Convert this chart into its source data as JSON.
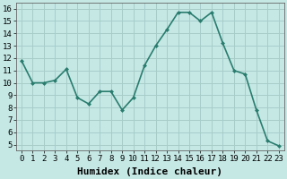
{
  "x": [
    0,
    1,
    2,
    3,
    4,
    5,
    6,
    7,
    8,
    9,
    10,
    11,
    12,
    13,
    14,
    15,
    16,
    17,
    18,
    19,
    20,
    21,
    22,
    23
  ],
  "y": [
    11.8,
    10.0,
    10.0,
    10.2,
    11.1,
    8.8,
    8.3,
    9.3,
    9.3,
    7.8,
    8.8,
    11.4,
    13.0,
    14.3,
    15.7,
    15.7,
    15.0,
    15.7,
    13.2,
    11.0,
    10.7,
    7.8,
    5.3,
    4.9
  ],
  "xlabel": "Humidex (Indice chaleur)",
  "line_color": "#2a7d6e",
  "marker": "D",
  "marker_size": 2,
  "bg_color": "#c5e8e5",
  "grid_color": "#a8cdc9",
  "ylim": [
    4.5,
    16.5
  ],
  "xlim": [
    -0.5,
    23.5
  ],
  "yticks": [
    5,
    6,
    7,
    8,
    9,
    10,
    11,
    12,
    13,
    14,
    15,
    16
  ],
  "xtick_labels": [
    "0",
    "1",
    "2",
    "3",
    "4",
    "5",
    "6",
    "7",
    "8",
    "9",
    "10",
    "11",
    "12",
    "13",
    "14",
    "15",
    "16",
    "17",
    "18",
    "19",
    "20",
    "21",
    "22",
    "23"
  ],
  "xlabel_fontsize": 8,
  "tick_fontsize": 6.5,
  "line_width": 1.2
}
